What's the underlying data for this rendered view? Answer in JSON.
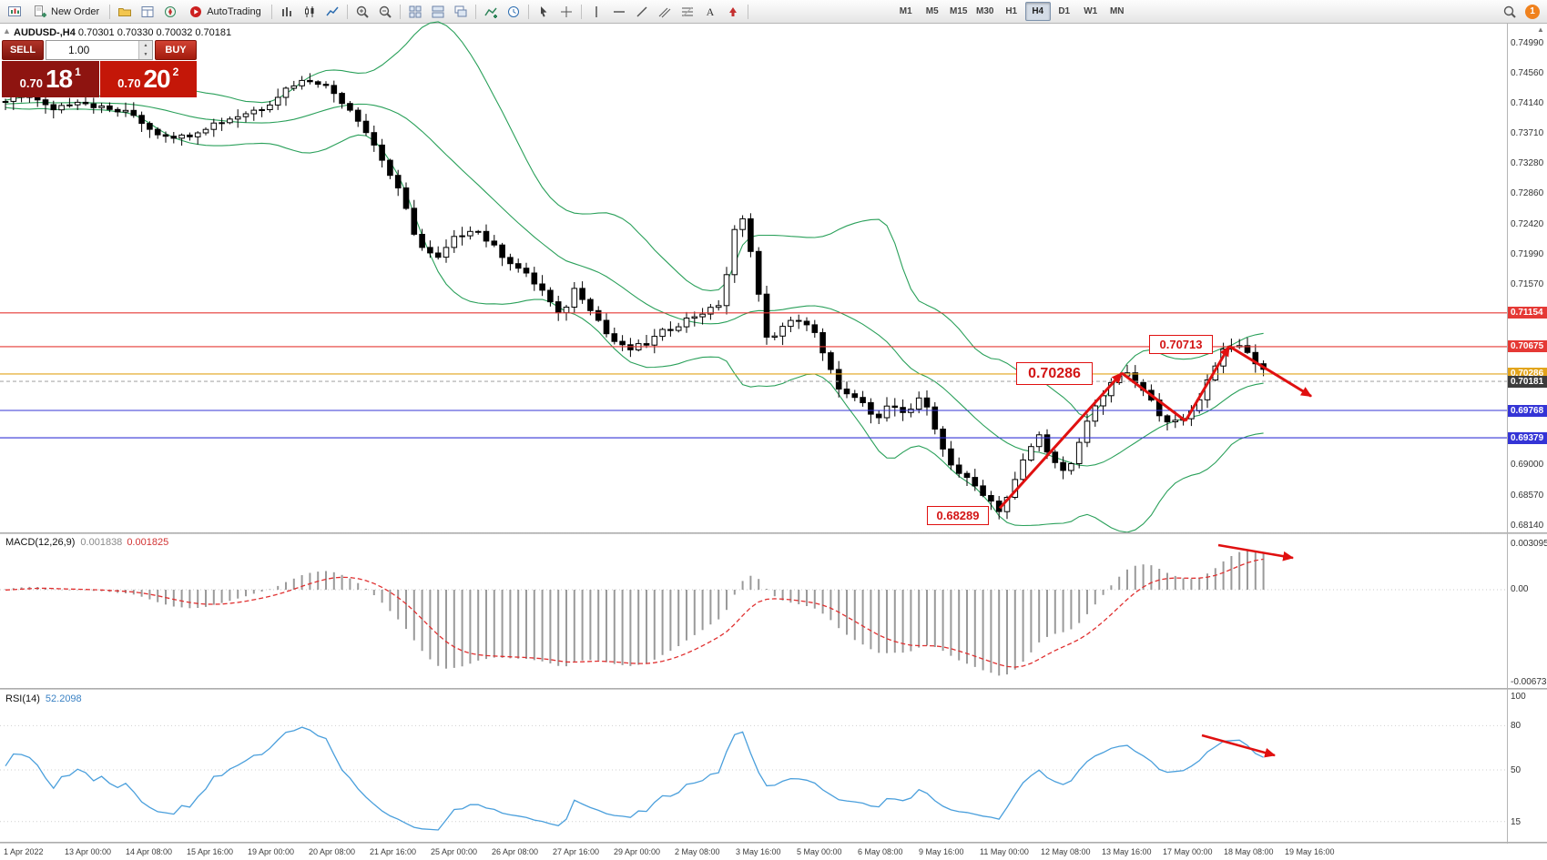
{
  "toolbar": {
    "items": [
      {
        "type": "icon",
        "name": "chart-window-icon"
      },
      {
        "type": "button",
        "name": "new-order-button",
        "label": "New Order",
        "icon": "order-icon"
      },
      {
        "type": "sep"
      },
      {
        "type": "icon",
        "name": "profiles-icon"
      },
      {
        "type": "icon",
        "name": "market-watch-icon"
      },
      {
        "type": "icon",
        "name": "navigator-icon"
      },
      {
        "type": "button",
        "name": "autotrading-button",
        "label": "AutoTrading",
        "icon": "autotrading-icon"
      },
      {
        "type": "sep"
      },
      {
        "type": "icon",
        "name": "bar-chart-icon"
      },
      {
        "type": "icon",
        "name": "candlestick-chart-icon"
      },
      {
        "type": "icon",
        "name": "line-chart-icon"
      },
      {
        "type": "sep"
      },
      {
        "type": "icon",
        "name": "zoom-in-icon"
      },
      {
        "type": "icon",
        "name": "zoom-out-icon"
      },
      {
        "type": "sep"
      },
      {
        "type": "icon",
        "name": "tile-windows-icon"
      },
      {
        "type": "icon",
        "name": "arrange-windows-icon"
      },
      {
        "type": "icon",
        "name": "cascade-windows-icon"
      },
      {
        "type": "sep"
      },
      {
        "type": "icon",
        "name": "new-indicator-icon"
      },
      {
        "type": "icon",
        "name": "period-separators-icon"
      },
      {
        "type": "sep"
      },
      {
        "type": "icon",
        "name": "cursor-icon"
      },
      {
        "type": "icon",
        "name": "crosshair-icon"
      },
      {
        "type": "sep"
      },
      {
        "type": "icon",
        "name": "vertical-line-icon"
      },
      {
        "type": "icon",
        "name": "horizontal-line-icon"
      },
      {
        "type": "icon",
        "name": "trendline-icon"
      },
      {
        "type": "icon",
        "name": "channel-icon"
      },
      {
        "type": "icon",
        "name": "fibonacci-icon"
      },
      {
        "type": "icon",
        "name": "text-icon"
      },
      {
        "type": "icon",
        "name": "arrows-icon"
      },
      {
        "type": "sep"
      },
      {
        "type": "spacer"
      },
      {
        "type": "tf-group"
      }
    ],
    "timeframes": [
      "M1",
      "M5",
      "M15",
      "M30",
      "H1",
      "H4",
      "D1",
      "W1",
      "MN"
    ],
    "active_timeframe": "H4",
    "right_icons": [
      "search-icon"
    ],
    "notification_count": "1"
  },
  "symbol_header": {
    "title": "AUDUSD-,H4",
    "ohlc": "0.70301 0.70330 0.70032 0.70181"
  },
  "trade_panel": {
    "sell_label": "SELL",
    "buy_label": "BUY",
    "volume": "1.00",
    "sell_price_small": "0.70",
    "sell_price_big": "18",
    "sell_price_sup": "1",
    "buy_price_small": "0.70",
    "buy_price_big": "20",
    "buy_price_sup": "2"
  },
  "price_axis": {
    "plain_labels": [
      "0.74990",
      "0.74560",
      "0.74140",
      "0.73710",
      "0.73280",
      "0.72860",
      "0.72420",
      "0.71990",
      "0.71570",
      "0.69000",
      "0.68570",
      "0.68140"
    ],
    "tags": [
      {
        "label": "0.71154",
        "price": 0.71154,
        "bg": "#e53935",
        "line": "solid",
        "line_color": "#e53935"
      },
      {
        "label": "0.70675",
        "price": 0.70675,
        "bg": "#e53935",
        "line": "solid",
        "line_color": "#e53935"
      },
      {
        "label": "0.70286",
        "price": 0.70286,
        "bg": "#e2a41b",
        "line": "solid",
        "line_color": "#e2a41b"
      },
      {
        "label": "0.70181",
        "price": 0.70181,
        "bg": "#3c3c3c",
        "line": "dashed",
        "line_color": "#aaaaaa"
      },
      {
        "label": "0.69768",
        "price": 0.69768,
        "bg": "#3434d6",
        "line": "solid",
        "line_color": "#3434d6"
      },
      {
        "label": "0.69379",
        "price": 0.69379,
        "bg": "#3434d6",
        "line": "solid",
        "line_color": "#3434d6"
      }
    ]
  },
  "macd_panel": {
    "name": "MACD(12,26,9)",
    "value_main": "0.001838",
    "value_signal": "0.001825",
    "axis": [
      "0.003095",
      "0.00",
      "-0.006731"
    ]
  },
  "rsi_panel": {
    "name": "RSI(14)",
    "value": "52.2098",
    "axis": [
      100,
      80,
      50,
      15
    ],
    "levels": [
      80,
      50,
      15
    ]
  },
  "time_axis": {
    "labels": [
      "1 Apr 2022",
      "13 Apr 00:00",
      "14 Apr 08:00",
      "15 Apr 16:00",
      "19 Apr 00:00",
      "20 Apr 08:00",
      "21 Apr 16:00",
      "25 Apr 00:00",
      "26 Apr 08:00",
      "27 Apr 16:00",
      "29 Apr 00:00",
      "2 May 08:00",
      "3 May 16:00",
      "5 May 00:00",
      "6 May 08:00",
      "9 May 16:00",
      "11 May 00:00",
      "12 May 08:00",
      "13 May 16:00",
      "17 May 00:00",
      "18 May 08:00",
      "19 May 16:00"
    ]
  },
  "annotations": {
    "low_label": "0.68289",
    "mid_label": "0.70286",
    "high_label": "0.70713",
    "zigzag": [
      [
        1098,
        0.6838
      ],
      [
        1232,
        0.703
      ],
      [
        1302,
        0.6962
      ],
      [
        1350,
        0.7068
      ],
      [
        1440,
        0.6997
      ]
    ],
    "macd_arrow": [
      [
        1338,
        599
      ],
      [
        1420,
        613
      ]
    ],
    "rsi_arrow": [
      [
        1320,
        808
      ],
      [
        1400,
        830
      ]
    ]
  },
  "colors": {
    "band_green": "#2aa05a",
    "rsi_blue": "#4a9fdc",
    "macd_hist": "#9a9a9a",
    "macd_signal": "#e03030",
    "annotation_red": "#e01010",
    "candle_up": "#ffffff",
    "candle_down": "#000000",
    "sell_dark": "#8e1410",
    "buy_red": "#c41708"
  },
  "chart_data": [
    {
      "type": "candlestick",
      "symbol": "AUDUSD-",
      "timeframe": "H4",
      "ylim": [
        0.6814,
        0.7499
      ],
      "indicators": [
        "Bollinger Bands (green)"
      ],
      "last_price": 0.70181,
      "price_path": [
        [
          0,
          0.7412
        ],
        [
          30,
          0.7426
        ],
        [
          55,
          0.7404
        ],
        [
          85,
          0.7418
        ],
        [
          115,
          0.7405
        ],
        [
          145,
          0.7398
        ],
        [
          170,
          0.7372
        ],
        [
          200,
          0.7365
        ],
        [
          230,
          0.7382
        ],
        [
          260,
          0.7395
        ],
        [
          290,
          0.7408
        ],
        [
          320,
          0.744
        ],
        [
          345,
          0.7448
        ],
        [
          365,
          0.743
        ],
        [
          390,
          0.7398
        ],
        [
          415,
          0.7345
        ],
        [
          440,
          0.7282
        ],
        [
          460,
          0.7212
        ],
        [
          480,
          0.719
        ],
        [
          500,
          0.7222
        ],
        [
          520,
          0.7238
        ],
        [
          545,
          0.7205
        ],
        [
          570,
          0.7178
        ],
        [
          595,
          0.7148
        ],
        [
          615,
          0.7108
        ],
        [
          632,
          0.7152
        ],
        [
          650,
          0.712
        ],
        [
          668,
          0.7082
        ],
        [
          688,
          0.7062
        ],
        [
          708,
          0.707
        ],
        [
          728,
          0.7088
        ],
        [
          748,
          0.7102
        ],
        [
          768,
          0.7115
        ],
        [
          788,
          0.7122
        ],
        [
          800,
          0.718
        ],
        [
          810,
          0.7255
        ],
        [
          820,
          0.724
        ],
        [
          832,
          0.715
        ],
        [
          842,
          0.7078
        ],
        [
          858,
          0.7092
        ],
        [
          875,
          0.7108
        ],
        [
          892,
          0.7094
        ],
        [
          908,
          0.7042
        ],
        [
          925,
          0.7002
        ],
        [
          945,
          0.6988
        ],
        [
          962,
          0.6962
        ],
        [
          980,
          0.6988
        ],
        [
          998,
          0.6972
        ],
        [
          1012,
          0.7
        ],
        [
          1028,
          0.6942
        ],
        [
          1042,
          0.6905
        ],
        [
          1058,
          0.6882
        ],
        [
          1078,
          0.6862
        ],
        [
          1098,
          0.6835
        ],
        [
          1112,
          0.6868
        ],
        [
          1128,
          0.6918
        ],
        [
          1142,
          0.6942
        ],
        [
          1158,
          0.6902
        ],
        [
          1172,
          0.6882
        ],
        [
          1188,
          0.6942
        ],
        [
          1202,
          0.6985
        ],
        [
          1218,
          0.7008
        ],
        [
          1232,
          0.7032
        ],
        [
          1246,
          0.7018
        ],
        [
          1258,
          0.7
        ],
        [
          1272,
          0.6975
        ],
        [
          1288,
          0.6958
        ],
        [
          1302,
          0.6964
        ],
        [
          1316,
          0.6992
        ],
        [
          1330,
          0.703
        ],
        [
          1342,
          0.7062
        ],
        [
          1352,
          0.7071
        ],
        [
          1362,
          0.7064
        ],
        [
          1370,
          0.7058
        ],
        [
          1378,
          0.7046
        ],
        [
          1388,
          0.7032
        ],
        [
          1397,
          0.7018
        ]
      ]
    },
    {
      "type": "macd",
      "params": [
        12,
        26,
        9
      ],
      "range": [
        -0.006731,
        0.003095
      ],
      "current_main": 0.001838,
      "current_signal": 0.001825
    },
    {
      "type": "rsi",
      "period": 14,
      "range": [
        0,
        100
      ],
      "current": 52.2098
    }
  ]
}
